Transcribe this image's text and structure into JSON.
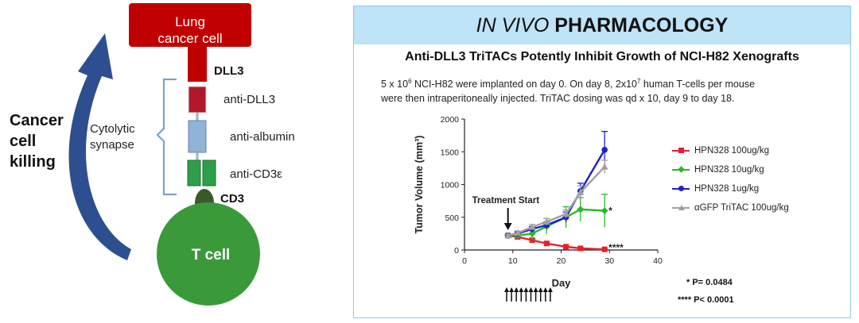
{
  "diagram": {
    "lung_cell_label": [
      "Lung",
      "cancer cell"
    ],
    "dll3_label": "DLL3",
    "cd3_label": "CD3",
    "parts": [
      "anti-DLL3",
      "anti-albumin",
      "anti-CD3ε"
    ],
    "synapse_label": [
      "Cytolytic",
      "synapse"
    ],
    "tcell_label": "T cell",
    "killing_label": [
      "Cancer",
      "cell",
      "killing"
    ],
    "colors": {
      "lung_cell": "#c00000",
      "anti_dll3": "#b3182a",
      "anti_albumin": "#8fb4d6",
      "anti_cd3": "#2e9e4a",
      "cd3": "#3a5a2a",
      "tcell": "#3a9a3a",
      "arrow": "#2e4f8f",
      "bracket": "#7aa3c7"
    }
  },
  "panel": {
    "title_italic": "IN VIVO",
    "title_rest": "PHARMACOLOGY",
    "subtitle": "Anti-DLL3 TriTACs Potently Inhibit Growth of NCI-H82 Xenografts",
    "desc_line1_a": "5 x 10",
    "desc_line1_sup1": "6",
    "desc_line1_b": " NCI-H82 were implanted on day 0.  On day 8, 2x10",
    "desc_line1_sup2": "7",
    "desc_line1_c": " human T-cells per mouse",
    "desc_line2": "were then intraperitoneally injected.  TriTAC dosing was qd x 10, day 9 to day 18.",
    "p_values": [
      "* P= 0.0484",
      "**** P< 0.0001"
    ],
    "header_color": "#bfe3f7"
  },
  "chart_data": {
    "type": "line",
    "title": "",
    "xlabel": "Day",
    "ylabel": "Tumor Volume (mm³)",
    "xlim": [
      0,
      40
    ],
    "ylim": [
      0,
      2000
    ],
    "x_ticks": [
      0,
      10,
      20,
      30,
      40
    ],
    "y_ticks": [
      0,
      500,
      1000,
      1500,
      2000
    ],
    "x_tick_labels": [
      "0",
      "10",
      "20",
      "30",
      "40"
    ],
    "y_tick_labels": [
      "0",
      "500",
      "1000",
      "1500",
      "2000"
    ],
    "legend_position": "right",
    "series": [
      {
        "name": "HPN328 100ug/kg",
        "color": "#e8202a",
        "marker": "square",
        "x": [
          9,
          11,
          14,
          17,
          21,
          24,
          29
        ],
        "y": [
          220,
          200,
          150,
          100,
          50,
          25,
          10
        ],
        "err": [
          20,
          20,
          20,
          20,
          15,
          10,
          5
        ]
      },
      {
        "name": "HPN328 10ug/kg",
        "color": "#28b828",
        "marker": "diamond",
        "x": [
          9,
          11,
          14,
          17,
          21,
          24,
          29
        ],
        "y": [
          220,
          220,
          250,
          360,
          500,
          620,
          600
        ],
        "err": [
          20,
          40,
          100,
          120,
          160,
          180,
          250
        ]
      },
      {
        "name": "HPN328 1ug/kg",
        "color": "#1c22d0",
        "marker": "circle",
        "x": [
          9,
          11,
          14,
          17,
          21,
          24,
          29
        ],
        "y": [
          220,
          250,
          320,
          380,
          500,
          900,
          1530
        ],
        "err": [
          20,
          30,
          40,
          50,
          80,
          120,
          280
        ]
      },
      {
        "name": "αGFP TriTAC 100ug/kg",
        "color": "#a0a0a0",
        "marker": "triangle",
        "x": [
          9,
          11,
          14,
          17,
          21,
          24,
          29
        ],
        "y": [
          220,
          260,
          350,
          430,
          550,
          880,
          1270
        ],
        "err": [
          20,
          30,
          40,
          50,
          60,
          100,
          100
        ]
      }
    ],
    "annotations": [
      {
        "text": "Treatment Start",
        "x": 9
      },
      {
        "text": "*",
        "x": 29,
        "y": 600,
        "series": "HPN328 10ug/kg"
      },
      {
        "text": "****",
        "x": 29,
        "y": 10,
        "series": "HPN328 100ug/kg"
      }
    ],
    "dosing_days": [
      9,
      10,
      11,
      12,
      13,
      14,
      15,
      16,
      17,
      18
    ]
  }
}
